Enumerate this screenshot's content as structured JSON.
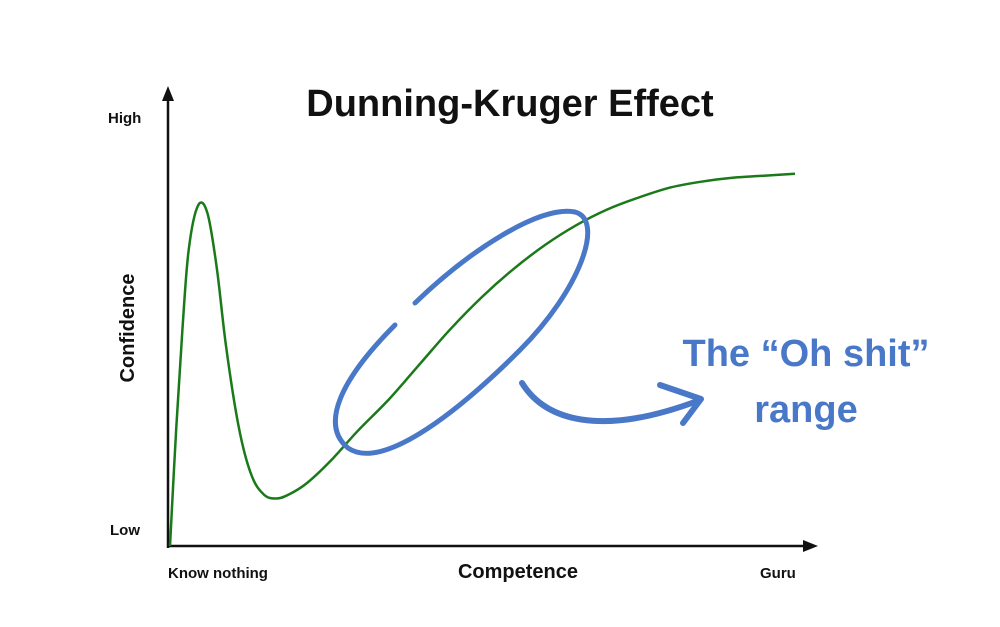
{
  "chart_data": {
    "type": "line",
    "title": "Dunning-Kruger Effect",
    "xlabel": "Competence",
    "ylabel": "Confidence",
    "x_ticks": [
      "Know nothing",
      "Guru"
    ],
    "y_ticks": [
      "Low",
      "High"
    ],
    "xlim": [
      0,
      1
    ],
    "ylim": [
      0,
      1
    ],
    "grid": false,
    "series": [
      {
        "color": "#1a7a1a",
        "x": [
          0.0,
          0.01,
          0.02,
          0.03,
          0.045,
          0.06,
          0.075,
          0.09,
          0.11,
          0.13,
          0.15,
          0.17,
          0.19,
          0.22,
          0.26,
          0.3,
          0.35,
          0.4,
          0.45,
          0.5,
          0.55,
          0.6,
          0.65,
          0.7,
          0.75,
          0.8,
          0.85,
          0.9,
          0.95,
          1.0
        ],
        "y": [
          0.0,
          0.3,
          0.55,
          0.75,
          0.86,
          0.84,
          0.7,
          0.5,
          0.3,
          0.18,
          0.13,
          0.12,
          0.13,
          0.16,
          0.22,
          0.29,
          0.37,
          0.46,
          0.55,
          0.63,
          0.7,
          0.76,
          0.81,
          0.85,
          0.88,
          0.905,
          0.92,
          0.93,
          0.935,
          0.94
        ]
      }
    ],
    "annotations": [
      {
        "text_line1": "The “Oh shit”",
        "text_line2": "range",
        "color": "#4a78c8",
        "x_start": 0.26,
        "x_end": 0.64
      }
    ]
  },
  "colors": {
    "axis": "#111111",
    "curve": "#1a7a1a",
    "annotation": "#4a78c8"
  }
}
